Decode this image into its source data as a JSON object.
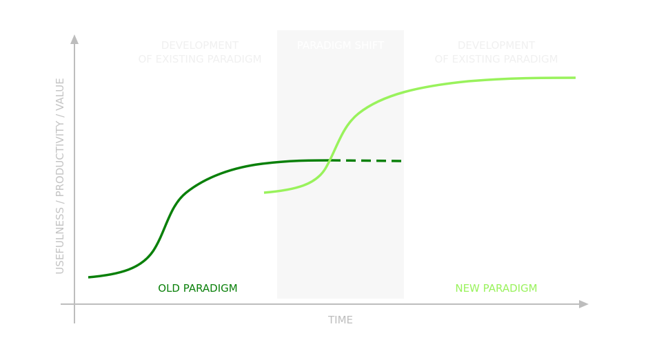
{
  "labels": {
    "y_axis": "USEFULNESS / PRODUCTIVITY / VALUE",
    "x_axis": "TIME",
    "old_paradigm": "OLD PARADIGM",
    "new_paradigm": "NEW PARADIGM",
    "development_left_1": "DEVELOPMENT",
    "development_left_2": "OF EXISTING PARADIGM",
    "paradigm_shift": "PARADIGM SHIFT",
    "development_right_1": "DEVELOPMENT",
    "development_right_2": "OF EXISTING PARADIGM"
  },
  "colors": {
    "old_paradigm": "#0a800a",
    "new_paradigm": "#99f25c",
    "axis": "#bdbdbd",
    "shift_region": "#f7f7f7",
    "faint_text": "#f0f0f0"
  }
}
